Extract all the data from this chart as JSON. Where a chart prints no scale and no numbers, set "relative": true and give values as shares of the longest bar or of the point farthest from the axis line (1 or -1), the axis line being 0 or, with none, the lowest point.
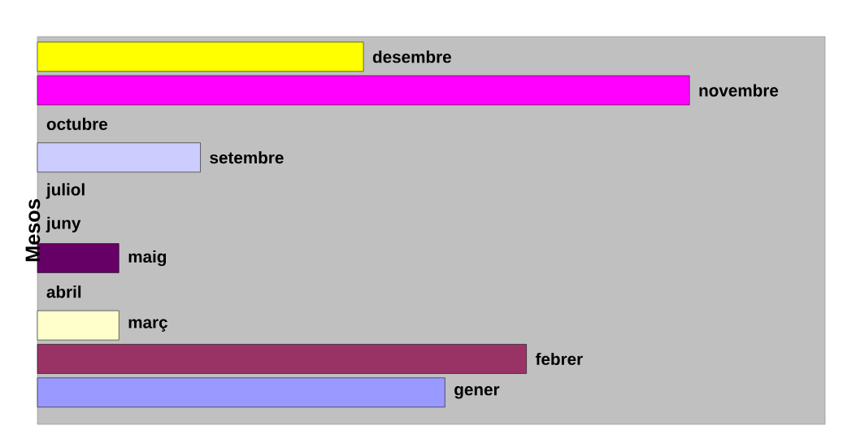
{
  "chart_data": {
    "type": "bar",
    "orientation": "horizontal",
    "relative": true,
    "ylabel": "Mesos",
    "categories": [
      "desembre",
      "novembre",
      "octubre",
      "setembre",
      "juliol",
      "juny",
      "maig",
      "abril",
      "març",
      "febrer",
      "gener"
    ],
    "values": [
      0.5,
      1,
      0,
      0.25,
      0,
      0,
      0.125,
      0,
      0.125,
      0.75,
      0.625
    ],
    "colors": [
      "#ffff00",
      "#ff00ff",
      null,
      "#ccccff",
      null,
      null,
      "#660066",
      null,
      "#ffffcc",
      "#993366",
      "#9999ff"
    ],
    "data_labels": false
  }
}
